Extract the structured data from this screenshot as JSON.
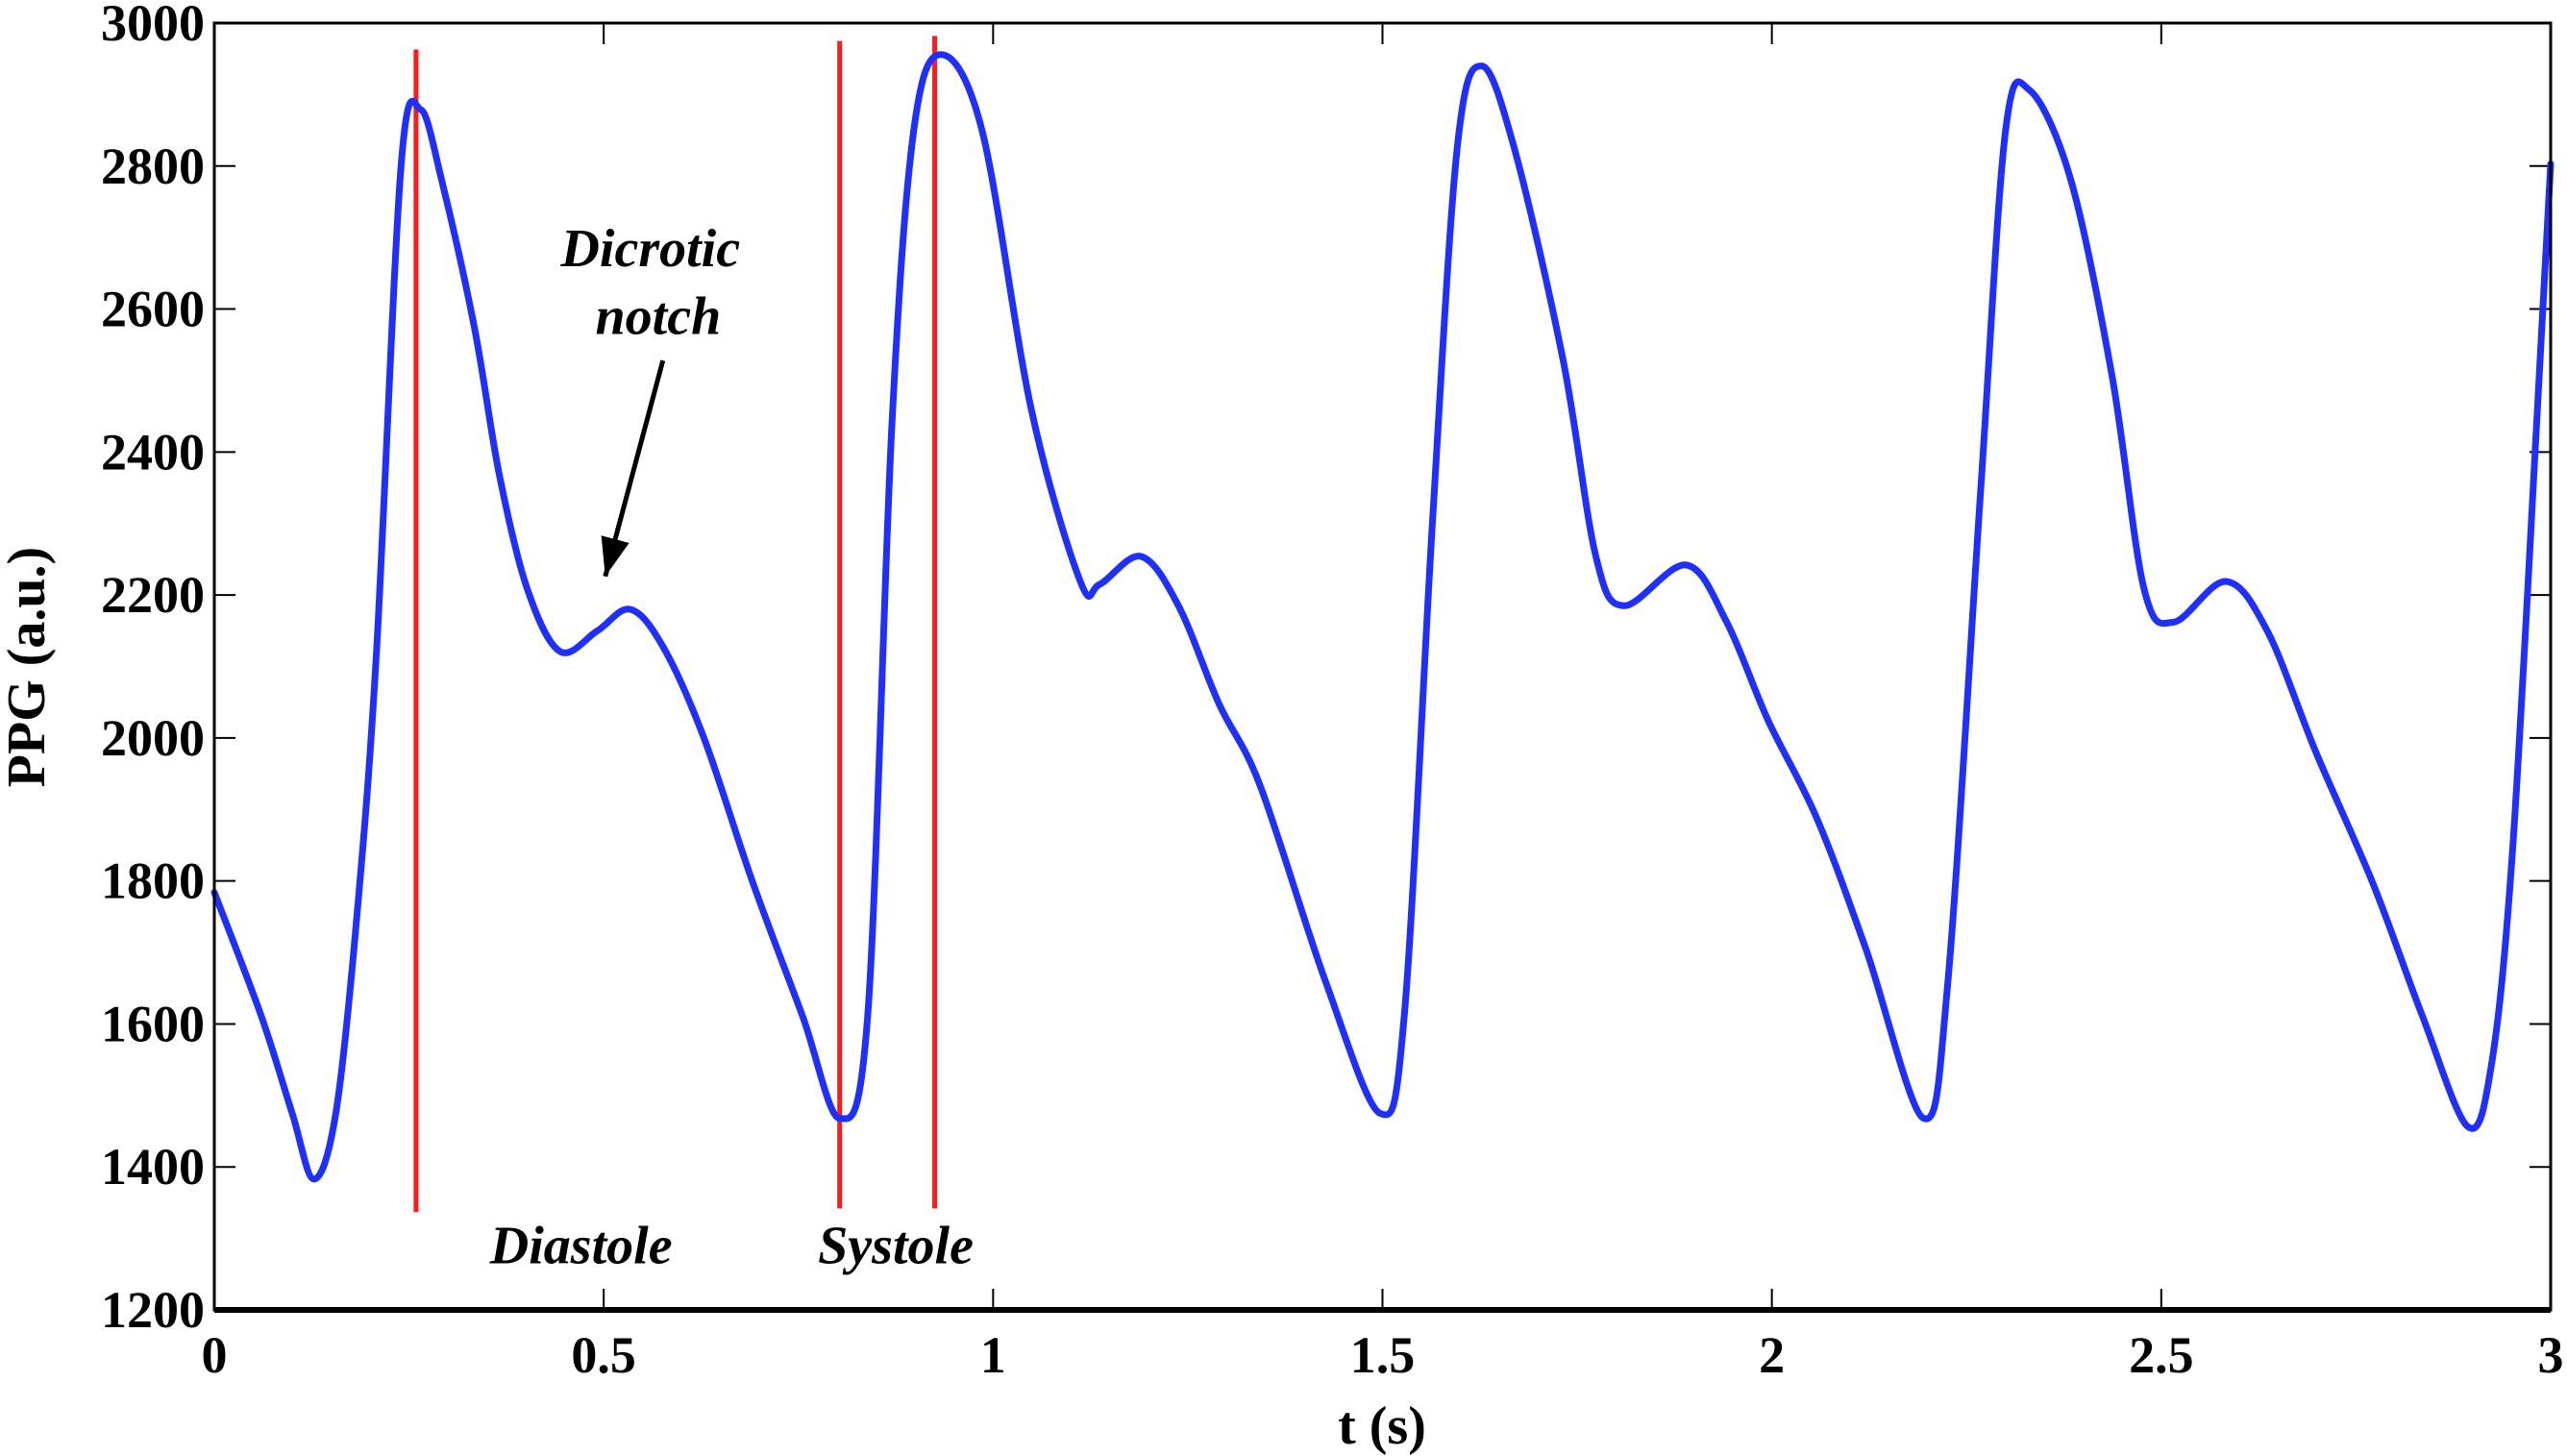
{
  "chart_data": {
    "type": "line",
    "title": "",
    "xlabel": "t (s)",
    "ylabel": "PPG (a.u.)",
    "xlim": [
      0,
      3
    ],
    "ylim": [
      1200,
      3000
    ],
    "xticks": [
      0,
      0.5,
      1,
      1.5,
      2,
      2.5,
      3
    ],
    "xtick_labels": [
      "0",
      "0.5",
      "1",
      "1.5",
      "2",
      "2.5",
      "3"
    ],
    "yticks": [
      1200,
      1400,
      1600,
      1800,
      2000,
      2200,
      2400,
      2600,
      2800,
      3000
    ],
    "ytick_labels": [
      "1200",
      "1400",
      "1600",
      "1800",
      "2000",
      "2200",
      "2400",
      "2600",
      "2800",
      "3000"
    ],
    "grid": false,
    "series": [
      {
        "name": "PPG",
        "color": "#1f2fff",
        "x": [
          0,
          0.06,
          0.1,
          0.128,
          0.156,
          0.183,
          0.208,
          0.24,
          0.265,
          0.292,
          0.334,
          0.366,
          0.402,
          0.444,
          0.492,
          0.534,
          0.576,
          0.628,
          0.692,
          0.755,
          0.803,
          0.839,
          0.87,
          0.898,
          0.933,
          0.986,
          1.049,
          1.112,
          1.137,
          1.19,
          1.238,
          1.29,
          1.343,
          1.427,
          1.497,
          1.528,
          1.564,
          1.596,
          1.627,
          1.669,
          1.732,
          1.774,
          1.81,
          1.89,
          1.942,
          1.995,
          2.058,
          2.121,
          2.195,
          2.226,
          2.268,
          2.3,
          2.331,
          2.384,
          2.437,
          2.478,
          2.516,
          2.583,
          2.636,
          2.699,
          2.772,
          2.835,
          2.894,
          2.924,
          2.951,
          2.983,
          3.0
        ],
        "y": [
          1784,
          1612,
          1475,
          1383,
          1475,
          1750,
          2116,
          2803,
          2879,
          2780,
          2574,
          2368,
          2208,
          2121,
          2150,
          2180,
          2128,
          2002,
          1796,
          1612,
          1468,
          1612,
          2437,
          2849,
          2956,
          2849,
          2460,
          2219,
          2215,
          2254,
          2185,
          2048,
          1933,
          1659,
          1475,
          1612,
          2299,
          2826,
          2940,
          2826,
          2528,
          2254,
          2185,
          2242,
          2162,
          2025,
          1887,
          1704,
          1468,
          1659,
          2345,
          2849,
          2906,
          2780,
          2505,
          2208,
          2162,
          2219,
          2150,
          1979,
          1796,
          1612,
          1456,
          1543,
          1842,
          2460,
          2803
        ]
      }
    ],
    "vertical_markers": [
      {
        "name": "peak-marker",
        "t": 0.259,
        "from": 1337,
        "to": 2963,
        "color": "#ff1a1a"
      },
      {
        "name": "foot-marker",
        "t": 0.803,
        "from": 1342,
        "to": 2975,
        "color": "#ff1a1a"
      },
      {
        "name": "peak-marker-2",
        "t": 0.925,
        "from": 1342,
        "to": 2982,
        "color": "#ff1a1a"
      }
    ],
    "annotations": [
      {
        "name": "dicrotic-label-line1",
        "text": "Dicrotic",
        "t": 0.56,
        "v": 2660
      },
      {
        "name": "dicrotic-label-line2",
        "text": "notch",
        "t": 0.57,
        "v": 2565
      },
      {
        "name": "diastole-label",
        "text": "Diastole",
        "t": 0.471,
        "v": 1265
      },
      {
        "name": "systole-label",
        "text": "Systole",
        "t": 0.875,
        "v": 1265
      }
    ],
    "arrow": {
      "from": [
        0.576,
        2528
      ],
      "to": [
        0.502,
        2226
      ]
    }
  }
}
